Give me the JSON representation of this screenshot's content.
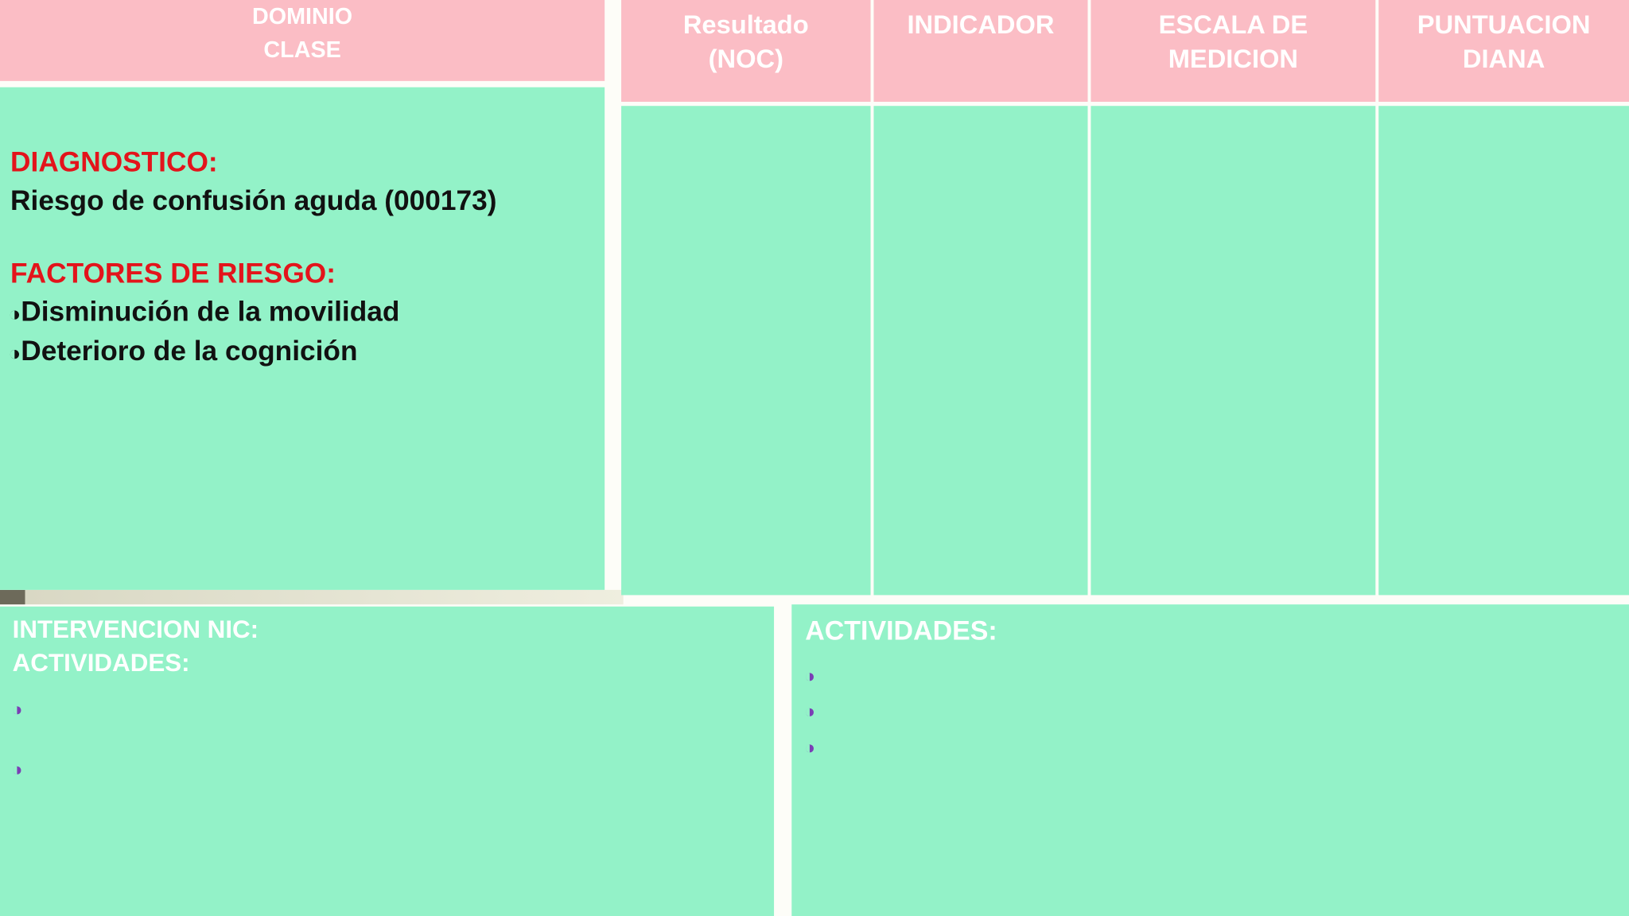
{
  "domain_header": {
    "lines": [
      "DOMINIO",
      "CLASE"
    ]
  },
  "table": {
    "headers": [
      {
        "lines": [
          "Resultado",
          "(NOC)"
        ]
      },
      {
        "lines": [
          "INDICADOR"
        ]
      },
      {
        "lines": [
          "ESCALA DE",
          "MEDICION"
        ]
      },
      {
        "lines": [
          "PUNTUACION",
          "DIANA"
        ]
      }
    ]
  },
  "diagnosis": {
    "label": "DIAGNOSTICO:",
    "text": "Riesgo de confusión aguda (000173)"
  },
  "risk_factors": {
    "label": "FACTORES DE RIESGO:",
    "items": [
      "Disminución de la movilidad",
      "Deterioro de la cognición"
    ]
  },
  "intervention": {
    "lines": [
      "INTERVENCION NIC:",
      "ACTIVIDADES:"
    ]
  },
  "activities": {
    "label": "ACTIVIDADES:"
  }
}
